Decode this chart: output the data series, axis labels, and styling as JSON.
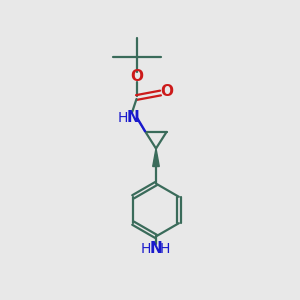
{
  "background_color": "#e8e8e8",
  "bond_color": "#3a6b5a",
  "n_color": "#1a1acc",
  "o_color": "#cc1a1a",
  "figsize": [
    3.0,
    3.0
  ],
  "dpi": 100,
  "xlim": [
    0,
    10
  ],
  "ylim": [
    0,
    10
  ]
}
